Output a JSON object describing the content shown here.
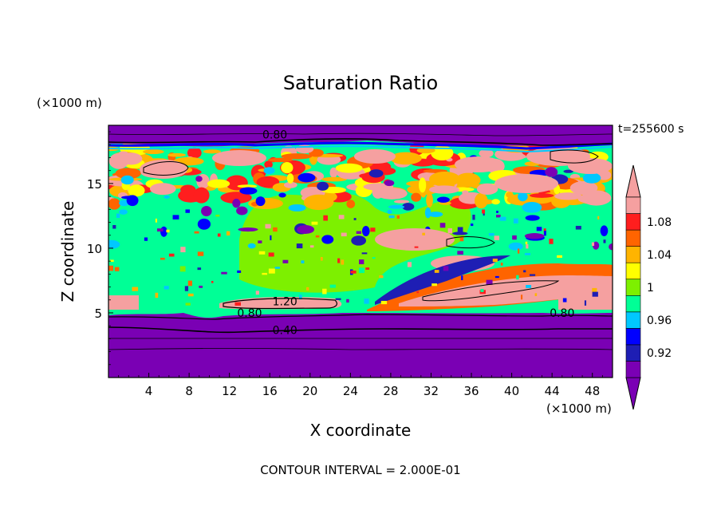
{
  "chart_data": {
    "type": "heatmap",
    "title": "Saturation Ratio",
    "xlabel": "X coordinate",
    "ylabel": "Z coordinate",
    "x_unit": "(×1000 m)",
    "y_unit": "(×1000 m)",
    "time_label": "t=255600 s",
    "footer": "CONTOUR INTERVAL = 2.000E-01",
    "xlim": [
      0,
      50
    ],
    "ylim": [
      0,
      19.5
    ],
    "x_ticks": [
      4,
      8,
      12,
      16,
      20,
      24,
      28,
      32,
      36,
      40,
      44,
      48
    ],
    "y_ticks": [
      5,
      10,
      15
    ],
    "colorbar": {
      "levels": [
        0.9,
        0.92,
        0.94,
        0.96,
        0.98,
        1.0,
        1.02,
        1.04,
        1.06,
        1.08,
        1.1
      ],
      "tick_labels": [
        "0.92",
        "0.96",
        "1",
        "1.04",
        "1.08"
      ],
      "tick_values": [
        0.92,
        0.96,
        1.0,
        1.04,
        1.08
      ],
      "colors": [
        "#7a00b4",
        "#1e1eb4",
        "#0000ff",
        "#00c8ff",
        "#00ff96",
        "#7df000",
        "#ffff00",
        "#ffb400",
        "#ff6400",
        "#ff1e1e",
        "#f5a0a0"
      ],
      "extend": "both"
    },
    "contour_labels": [
      {
        "text": "0.80",
        "x": 16.5,
        "y": 18.6
      },
      {
        "text": "1.20",
        "x": 17.5,
        "y": 5.7
      },
      {
        "text": "0.80",
        "x": 14.0,
        "y": 4.8
      },
      {
        "text": "0.40",
        "x": 17.5,
        "y": 3.5
      },
      {
        "text": "0.80",
        "x": 45.0,
        "y": 4.8
      }
    ]
  }
}
